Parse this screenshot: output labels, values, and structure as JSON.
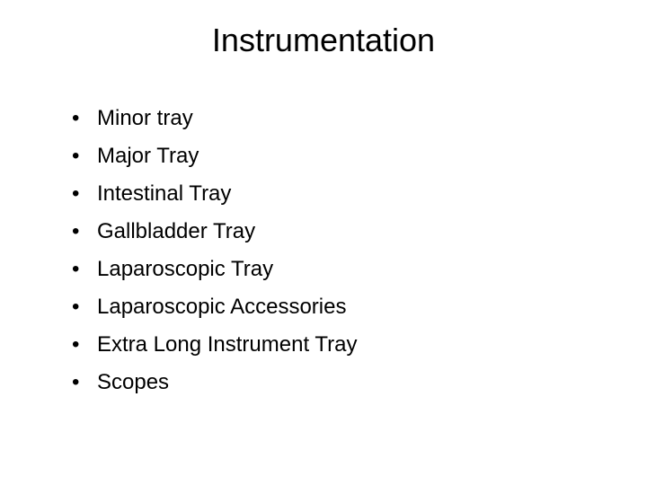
{
  "slide": {
    "title": "Instrumentation",
    "title_fontsize": 36,
    "title_color": "#000000",
    "body_fontsize": 24,
    "body_color": "#000000",
    "line_height": 1.5,
    "background_color": "#ffffff",
    "bullet_char": "•",
    "items": [
      "Minor tray",
      "Major Tray",
      "Intestinal Tray",
      "Gallbladder Tray",
      "Laparoscopic Tray",
      "Laparoscopic Accessories",
      "Extra Long Instrument Tray",
      "Scopes"
    ]
  }
}
